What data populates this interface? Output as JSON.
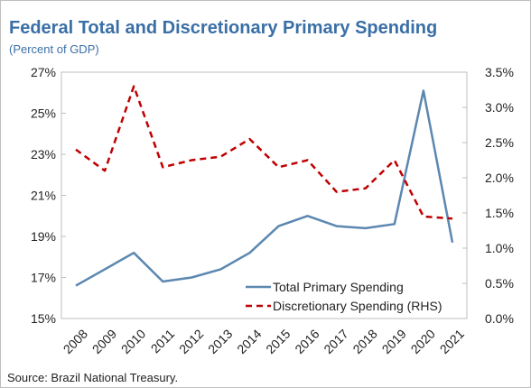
{
  "chart_data": {
    "type": "line",
    "title": "Federal Total and Discretionary Primary Spending",
    "subtitle": "(Percent of GDP)",
    "x": [
      "2008",
      "2009",
      "2010",
      "2011",
      "2012",
      "2013",
      "2014",
      "2015",
      "2016",
      "2017",
      "2018",
      "2019",
      "2020",
      "2021"
    ],
    "y_left": {
      "range": [
        15,
        27
      ],
      "ticks": [
        "15%",
        "17%",
        "19%",
        "21%",
        "23%",
        "25%",
        "27%"
      ]
    },
    "y_right": {
      "range": [
        0,
        3.5
      ],
      "ticks": [
        "0.0%",
        "0.5%",
        "1.0%",
        "1.5%",
        "2.0%",
        "2.5%",
        "3.0%",
        "3.5%"
      ]
    },
    "series": [
      {
        "name": "Total Primary Spending",
        "axis": "left",
        "style": "solid",
        "color": "#5b87b0",
        "values": [
          16.6,
          17.4,
          18.2,
          16.8,
          17.0,
          17.4,
          18.2,
          19.5,
          20.0,
          19.5,
          19.4,
          19.6,
          26.1,
          18.7
        ]
      },
      {
        "name": "Discretionary Spending (RHS)",
        "axis": "right",
        "style": "dashed",
        "color": "#c00000",
        "values": [
          2.4,
          2.1,
          3.3,
          2.15,
          2.25,
          2.3,
          2.55,
          2.15,
          2.25,
          1.8,
          1.85,
          2.25,
          1.45,
          1.42
        ]
      }
    ],
    "legend": "bottom-right",
    "grid": false
  },
  "source": "Source: Brazil National Treasury."
}
